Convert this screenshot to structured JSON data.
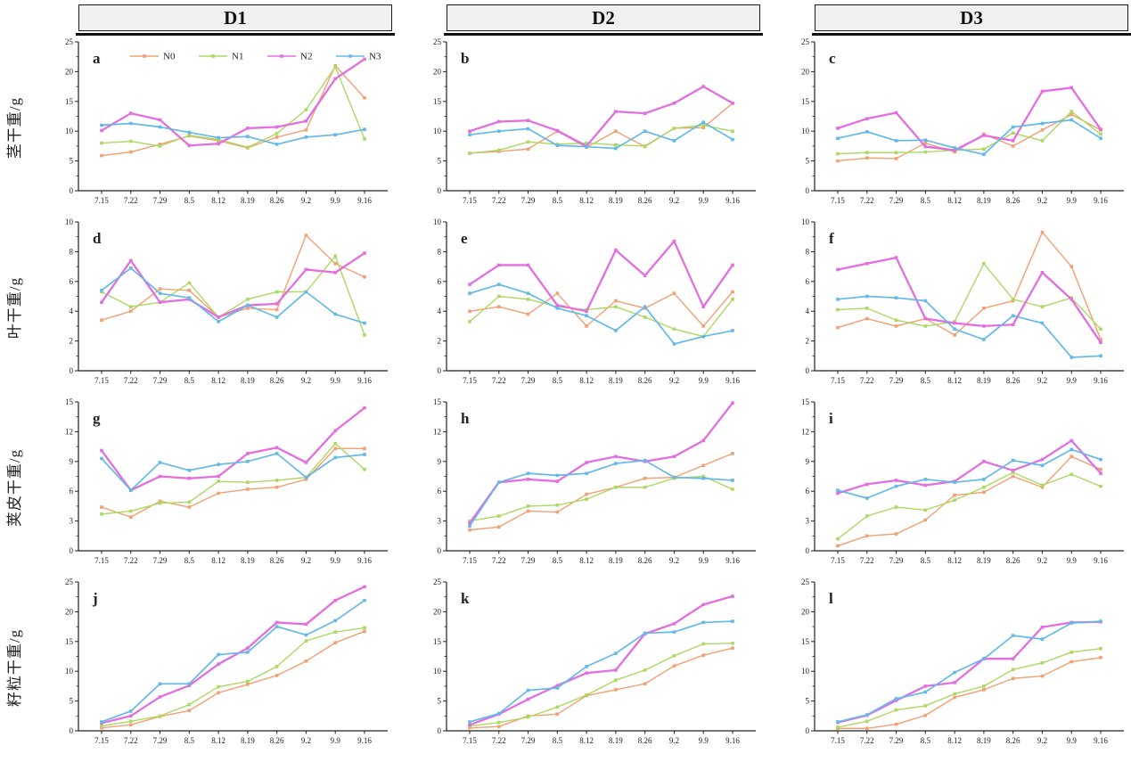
{
  "figure": {
    "columns": [
      "D1",
      "D2",
      "D3"
    ],
    "row_labels": [
      "茎干重/g",
      "叶干重/g",
      "荚皮干重/g",
      "籽粒干重/g"
    ]
  },
  "chart_data": {
    "type": "line",
    "categories": [
      "7.15",
      "7.22",
      "7.29",
      "8.5",
      "8.12",
      "8.19",
      "8.26",
      "9.2",
      "9.9",
      "9.16"
    ],
    "legend": {
      "entries": [
        "N0",
        "N1",
        "N2",
        "N3"
      ],
      "position": "top-center-of-panel-a"
    },
    "series_colors": {
      "N0": "#f2a072",
      "N1": "#abd962",
      "N2": "#e36ee0",
      "N3": "#63b9e8"
    },
    "grid": "off",
    "rows": [
      {
        "ylabel": "茎干重/g",
        "ylim": [
          0,
          25
        ],
        "yticks": [
          0,
          5,
          10,
          15,
          20,
          25
        ]
      },
      {
        "ylabel": "叶干重/g",
        "ylim": [
          0,
          10
        ],
        "yticks": [
          0,
          2,
          4,
          6,
          8,
          10
        ]
      },
      {
        "ylabel": "荚皮干重/g",
        "ylim": [
          0,
          15
        ],
        "yticks": [
          0,
          3,
          6,
          9,
          12,
          15
        ]
      },
      {
        "ylabel": "籽粒干重/g",
        "ylim": [
          0,
          25
        ],
        "yticks": [
          0,
          5,
          10,
          15,
          20,
          25
        ]
      }
    ],
    "panels": [
      {
        "letter": "a",
        "column": "D1",
        "row": 0,
        "col": 0,
        "show_legend": true,
        "series": [
          {
            "name": "N0",
            "values": [
              5.9,
              6.5,
              7.8,
              9.2,
              8.4,
              7.2,
              9.0,
              10.2,
              21.0,
              15.6
            ]
          },
          {
            "name": "N1",
            "values": [
              8.0,
              8.3,
              7.5,
              9.3,
              8.6,
              7.3,
              9.6,
              13.6,
              20.8,
              8.7
            ]
          },
          {
            "name": "N2",
            "values": [
              10.1,
              13.0,
              11.9,
              7.6,
              7.9,
              10.5,
              10.7,
              11.7,
              18.8,
              22.1
            ]
          },
          {
            "name": "N3",
            "values": [
              11.0,
              11.3,
              10.7,
              9.8,
              8.9,
              9.1,
              7.8,
              9.0,
              9.4,
              10.3
            ]
          }
        ]
      },
      {
        "letter": "b",
        "column": "D2",
        "row": 0,
        "col": 1,
        "show_legend": false,
        "series": [
          {
            "name": "N0",
            "values": [
              6.3,
              6.6,
              7.0,
              10.0,
              7.3,
              10.0,
              7.4,
              10.5,
              10.6,
              14.7
            ]
          },
          {
            "name": "N1",
            "values": [
              6.3,
              6.8,
              8.2,
              7.8,
              8.0,
              7.7,
              7.5,
              10.5,
              11.0,
              10.0
            ]
          },
          {
            "name": "N2",
            "values": [
              10.0,
              11.6,
              11.8,
              10.1,
              7.5,
              13.3,
              13.0,
              14.7,
              17.5,
              14.7
            ]
          },
          {
            "name": "N3",
            "values": [
              9.4,
              10.0,
              10.4,
              7.6,
              7.4,
              7.1,
              10.0,
              8.4,
              11.5,
              8.6
            ]
          }
        ]
      },
      {
        "letter": "c",
        "column": "D3",
        "row": 0,
        "col": 2,
        "show_legend": false,
        "series": [
          {
            "name": "N0",
            "values": [
              5.0,
              5.5,
              5.4,
              8.0,
              6.5,
              9.5,
              7.5,
              10.2,
              12.8,
              10.2
            ]
          },
          {
            "name": "N1",
            "values": [
              6.2,
              6.4,
              6.4,
              6.5,
              6.8,
              7.0,
              9.7,
              8.4,
              13.3,
              9.5
            ]
          },
          {
            "name": "N2",
            "values": [
              10.5,
              12.1,
              13.1,
              7.4,
              6.8,
              9.3,
              8.4,
              16.7,
              17.3,
              10.3
            ]
          },
          {
            "name": "N3",
            "values": [
              8.8,
              9.9,
              8.4,
              8.5,
              7.2,
              6.1,
              10.7,
              11.3,
              11.9,
              8.8
            ]
          }
        ]
      },
      {
        "letter": "d",
        "column": "D1",
        "row": 1,
        "col": 0,
        "show_legend": false,
        "series": [
          {
            "name": "N0",
            "values": [
              3.4,
              4.0,
              5.5,
              5.4,
              3.6,
              4.2,
              4.1,
              9.1,
              7.2,
              6.3
            ]
          },
          {
            "name": "N1",
            "values": [
              5.3,
              4.3,
              4.6,
              5.9,
              3.6,
              4.8,
              5.3,
              5.3,
              7.7,
              2.4
            ]
          },
          {
            "name": "N2",
            "values": [
              4.6,
              7.4,
              4.6,
              4.8,
              3.6,
              4.4,
              4.5,
              6.8,
              6.6,
              7.9
            ]
          },
          {
            "name": "N3",
            "values": [
              5.4,
              6.9,
              5.2,
              4.9,
              3.3,
              4.4,
              3.6,
              5.3,
              3.8,
              3.2
            ]
          }
        ]
      },
      {
        "letter": "e",
        "column": "D2",
        "row": 1,
        "col": 1,
        "show_legend": false,
        "series": [
          {
            "name": "N0",
            "values": [
              4.0,
              4.3,
              3.8,
              5.2,
              3.0,
              4.7,
              4.2,
              5.2,
              3.0,
              5.3
            ]
          },
          {
            "name": "N1",
            "values": [
              3.3,
              5.0,
              4.8,
              4.3,
              4.1,
              4.3,
              3.6,
              2.8,
              2.3,
              4.8
            ]
          },
          {
            "name": "N2",
            "values": [
              5.8,
              7.1,
              7.1,
              4.4,
              4.0,
              8.1,
              6.4,
              8.7,
              4.3,
              7.1
            ]
          },
          {
            "name": "N3",
            "values": [
              5.2,
              5.8,
              5.2,
              4.2,
              3.7,
              2.7,
              4.3,
              1.8,
              2.3,
              2.7
            ]
          }
        ]
      },
      {
        "letter": "f",
        "column": "D3",
        "row": 1,
        "col": 2,
        "show_legend": false,
        "series": [
          {
            "name": "N0",
            "values": [
              2.9,
              3.5,
              3.0,
              3.5,
              2.4,
              4.2,
              4.7,
              9.3,
              7.0,
              2.1
            ]
          },
          {
            "name": "N1",
            "values": [
              4.1,
              4.2,
              3.4,
              3.0,
              3.3,
              7.2,
              4.8,
              4.3,
              4.9,
              2.8
            ]
          },
          {
            "name": "N2",
            "values": [
              6.8,
              7.2,
              7.6,
              3.5,
              3.2,
              3.0,
              3.1,
              6.6,
              4.8,
              1.9
            ]
          },
          {
            "name": "N3",
            "values": [
              4.8,
              5.0,
              4.9,
              4.7,
              2.8,
              2.1,
              3.7,
              3.2,
              0.9,
              1.0
            ]
          }
        ]
      },
      {
        "letter": "g",
        "column": "D1",
        "row": 2,
        "col": 0,
        "show_legend": false,
        "series": [
          {
            "name": "N0",
            "values": [
              4.4,
              3.4,
              5.0,
              4.4,
              5.8,
              6.2,
              6.4,
              7.2,
              10.3,
              10.3
            ]
          },
          {
            "name": "N1",
            "values": [
              3.7,
              4.0,
              4.8,
              4.9,
              7.0,
              6.9,
              7.1,
              7.4,
              10.8,
              8.2
            ]
          },
          {
            "name": "N2",
            "values": [
              10.1,
              6.1,
              7.5,
              7.3,
              7.5,
              9.8,
              10.4,
              8.9,
              12.1,
              14.4
            ]
          },
          {
            "name": "N3",
            "values": [
              9.3,
              6.1,
              8.9,
              8.1,
              8.7,
              9.0,
              9.8,
              7.4,
              9.4,
              9.7
            ]
          }
        ]
      },
      {
        "letter": "h",
        "column": "D2",
        "row": 2,
        "col": 1,
        "show_legend": false,
        "series": [
          {
            "name": "N0",
            "values": [
              2.1,
              2.4,
              4.0,
              3.9,
              5.7,
              6.4,
              7.3,
              7.4,
              8.6,
              9.8
            ]
          },
          {
            "name": "N1",
            "values": [
              3.0,
              3.5,
              4.5,
              4.6,
              5.2,
              6.4,
              6.4,
              7.3,
              7.5,
              6.2
            ]
          },
          {
            "name": "N2",
            "values": [
              2.8,
              6.9,
              7.2,
              7.0,
              8.9,
              9.5,
              9.0,
              9.5,
              11.1,
              14.9
            ]
          },
          {
            "name": "N3",
            "values": [
              2.5,
              6.9,
              7.8,
              7.6,
              7.8,
              8.8,
              9.1,
              7.4,
              7.3,
              7.1
            ]
          }
        ]
      },
      {
        "letter": "i",
        "column": "D3",
        "row": 2,
        "col": 2,
        "show_legend": false,
        "series": [
          {
            "name": "N0",
            "values": [
              0.5,
              1.5,
              1.7,
              3.1,
              5.6,
              5.9,
              7.5,
              6.4,
              9.5,
              8.2
            ]
          },
          {
            "name": "N1",
            "values": [
              1.2,
              3.5,
              4.4,
              4.1,
              5.1,
              6.4,
              7.9,
              6.6,
              7.7,
              6.5
            ]
          },
          {
            "name": "N2",
            "values": [
              5.8,
              6.7,
              7.1,
              6.6,
              7.0,
              9.0,
              8.1,
              9.2,
              11.1,
              7.8
            ]
          },
          {
            "name": "N3",
            "values": [
              6.1,
              5.3,
              6.5,
              7.2,
              6.9,
              7.2,
              9.1,
              8.6,
              10.2,
              9.2
            ]
          }
        ]
      },
      {
        "letter": "j",
        "column": "D1",
        "row": 3,
        "col": 0,
        "show_legend": false,
        "series": [
          {
            "name": "N0",
            "values": [
              0.5,
              1.0,
              2.4,
              3.4,
              6.4,
              7.8,
              9.3,
              11.7,
              14.8,
              16.7
            ]
          },
          {
            "name": "N1",
            "values": [
              0.8,
              1.6,
              2.5,
              4.4,
              7.4,
              8.3,
              10.8,
              15.1,
              16.6,
              17.3
            ]
          },
          {
            "name": "N2",
            "values": [
              1.3,
              2.5,
              5.7,
              7.6,
              11.2,
              13.9,
              18.2,
              17.9,
              21.9,
              24.2
            ]
          },
          {
            "name": "N3",
            "values": [
              1.5,
              3.3,
              7.9,
              7.9,
              12.8,
              13.2,
              17.5,
              16.1,
              18.5,
              21.9
            ]
          }
        ]
      },
      {
        "letter": "k",
        "column": "D2",
        "row": 3,
        "col": 1,
        "show_legend": false,
        "series": [
          {
            "name": "N0",
            "values": [
              0.5,
              0.7,
              2.5,
              2.8,
              5.9,
              6.9,
              7.9,
              10.9,
              12.7,
              13.9
            ]
          },
          {
            "name": "N1",
            "values": [
              0.8,
              1.4,
              2.3,
              4.0,
              6.0,
              8.5,
              10.2,
              12.6,
              14.6,
              14.7
            ]
          },
          {
            "name": "N2",
            "values": [
              1.0,
              2.8,
              5.3,
              7.6,
              9.7,
              10.2,
              16.3,
              18.0,
              21.2,
              22.6
            ]
          },
          {
            "name": "N3",
            "values": [
              1.5,
              2.9,
              6.8,
              7.2,
              10.8,
              13.0,
              16.4,
              16.6,
              18.2,
              18.4
            ]
          }
        ]
      },
      {
        "letter": "l",
        "column": "D3",
        "row": 3,
        "col": 2,
        "show_legend": false,
        "series": [
          {
            "name": "N0",
            "values": [
              0.4,
              0.4,
              1.1,
              2.6,
              5.6,
              6.9,
              8.8,
              9.2,
              11.6,
              12.3
            ]
          },
          {
            "name": "N1",
            "values": [
              0.6,
              1.6,
              3.5,
              4.2,
              6.2,
              7.5,
              10.3,
              11.4,
              13.2,
              13.8
            ]
          },
          {
            "name": "N2",
            "values": [
              1.4,
              2.6,
              5.1,
              7.5,
              8.1,
              12.1,
              12.1,
              17.4,
              18.2,
              18.3
            ]
          },
          {
            "name": "N3",
            "values": [
              1.5,
              2.7,
              5.4,
              6.5,
              9.8,
              12.1,
              16.0,
              15.4,
              18.1,
              18.4
            ]
          }
        ]
      }
    ]
  }
}
